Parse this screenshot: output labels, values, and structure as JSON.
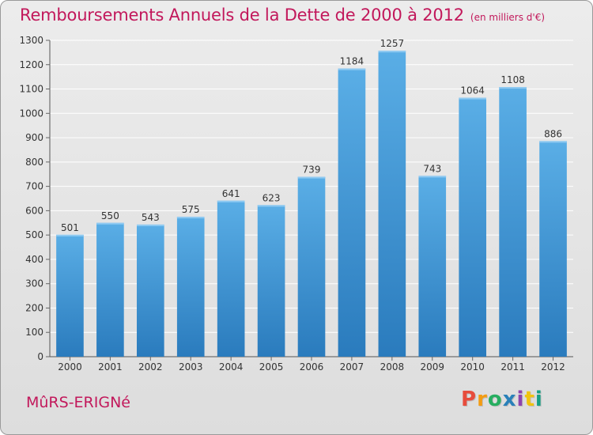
{
  "header": {
    "title": "Remboursements Annuels de la Dette de 2000 à 2012",
    "unit": "(en milliers d'€)"
  },
  "footer": {
    "commune": "MûRS-ERIGNé",
    "logo": "Proxiti"
  },
  "colors": {
    "accent": "#c2185b",
    "bar_top": "#5aaee6",
    "bar_bottom": "#2a7bbd",
    "logo_letters": [
      "#e74c3c",
      "#f39c12",
      "#27ae60",
      "#2980b9",
      "#8e44ad",
      "#f1c40f",
      "#16a085"
    ]
  },
  "chart_data": {
    "type": "bar",
    "categories": [
      "2000",
      "2001",
      "2002",
      "2003",
      "2004",
      "2005",
      "2006",
      "2007",
      "2008",
      "2009",
      "2010",
      "2011",
      "2012"
    ],
    "values": [
      501,
      550,
      543,
      575,
      641,
      623,
      739,
      1184,
      1257,
      743,
      1064,
      1108,
      886
    ],
    "ylim": [
      0,
      1300
    ],
    "yticks": [
      0,
      100,
      200,
      300,
      400,
      500,
      600,
      700,
      800,
      900,
      1000,
      1100,
      1200,
      1300
    ],
    "grid": true,
    "data_labels": true
  }
}
